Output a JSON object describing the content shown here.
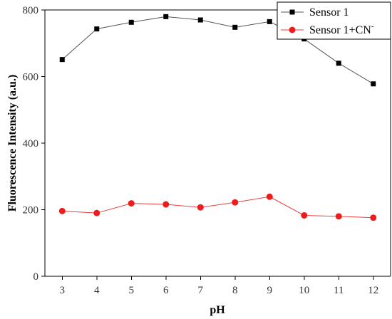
{
  "chart_data": {
    "type": "line",
    "title": "",
    "xlabel": "pH",
    "ylabel": "Fluorescence Intensity (a.u.)",
    "x": [
      3,
      4,
      5,
      6,
      7,
      8,
      9,
      10,
      11,
      12
    ],
    "xlim": [
      2.5,
      12.5
    ],
    "ylim": [
      0,
      800
    ],
    "x_ticks": [
      3,
      4,
      5,
      6,
      7,
      8,
      9,
      10,
      11,
      12
    ],
    "y_ticks": [
      0,
      200,
      400,
      600,
      800
    ],
    "grid": false,
    "legend_position": "top-right",
    "series": [
      {
        "name": "Sensor 1",
        "marker": "square",
        "line_color": "#555555",
        "marker_color": "#000000",
        "values": [
          651,
          743,
          763,
          780,
          770,
          748,
          765,
          713,
          640,
          578
        ]
      },
      {
        "name": "Sensor 1+CN",
        "name_superscript": "-",
        "marker": "circle",
        "line_color": "#e84040",
        "marker_color": "#ee1c1c",
        "values": [
          196,
          190,
          219,
          216,
          207,
          222,
          239,
          183,
          180,
          176
        ]
      }
    ]
  }
}
